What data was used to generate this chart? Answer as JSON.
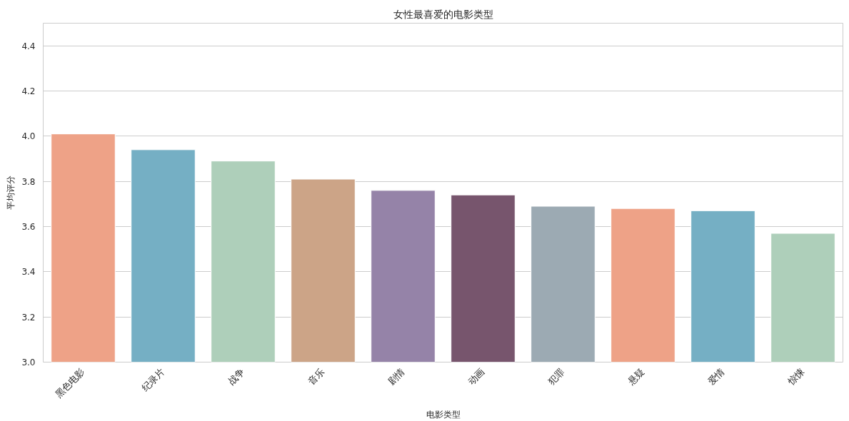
{
  "chart_data": {
    "type": "bar",
    "title": "女性最喜爱的电影类型",
    "xlabel": "电影类型",
    "ylabel": "平均评分",
    "categories": [
      "黑色电影",
      "纪录片",
      "战争",
      "音乐",
      "剧情",
      "动画",
      "犯罪",
      "悬疑",
      "爱情",
      "惊悚"
    ],
    "values": [
      4.01,
      3.94,
      3.89,
      3.81,
      3.76,
      3.74,
      3.69,
      3.68,
      3.67,
      3.57
    ],
    "colors": [
      "#eea287",
      "#75afc4",
      "#aecfba",
      "#cca487",
      "#9583a8",
      "#77556d",
      "#9caab3",
      "#eea287",
      "#75afc4",
      "#aecfba"
    ],
    "ylim": [
      3.0,
      4.5
    ],
    "yticks": [
      {
        "value": 3.0,
        "label": "3.0"
      },
      3.2,
      3.4,
      3.6,
      3.8,
      {
        "value": 4.0,
        "label": "4.0"
      },
      4.2,
      4.4
    ],
    "grid": "y"
  }
}
